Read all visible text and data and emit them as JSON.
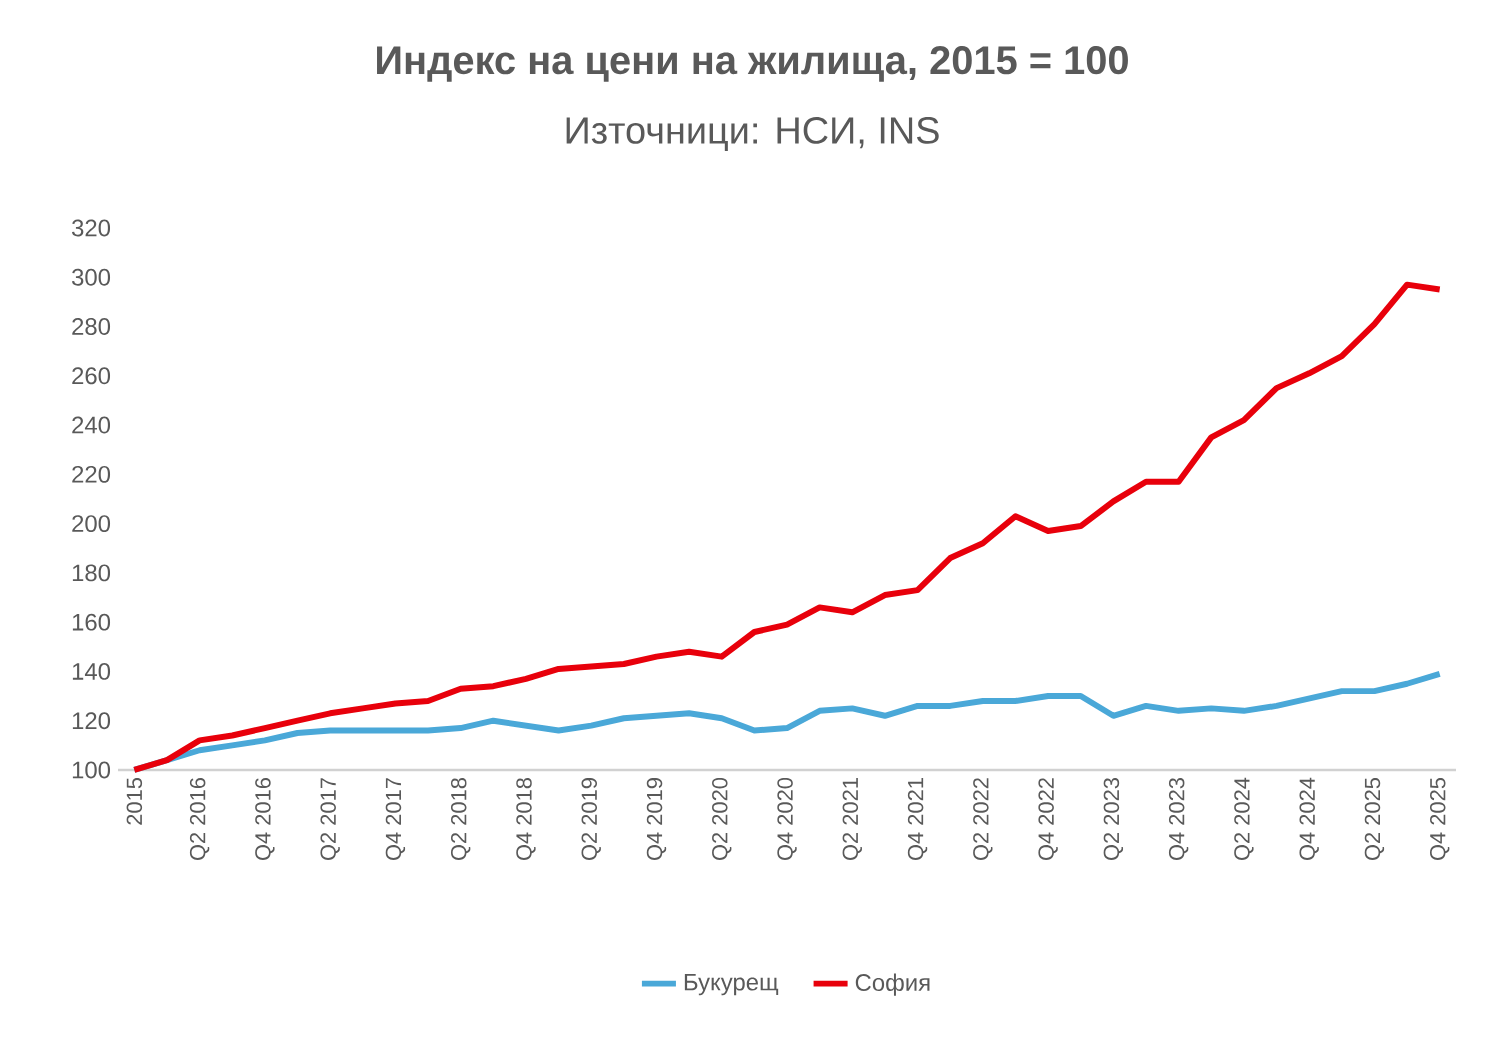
{
  "chart_data": {
    "type": "line",
    "title": "Индекс на цени на жилища, 2015 = 100",
    "subtitle": "Източници: НСИ, INS",
    "categories": [
      "2015",
      null,
      "Q2 2016",
      null,
      "Q4 2016",
      null,
      "Q2 2017",
      null,
      "Q4 2017",
      null,
      "Q2 2018",
      null,
      "Q4 2018",
      null,
      "Q2 2019",
      null,
      "Q4 2019",
      null,
      "Q2 2020",
      null,
      "Q4 2020",
      null,
      "Q2 2021",
      null,
      "Q4 2021",
      null,
      "Q2 2022",
      null,
      "Q4 2022",
      null,
      "Q2 2023",
      null,
      "Q4 2023",
      null,
      "Q2 2024",
      null,
      "Q4 2024",
      null,
      "Q2 2025",
      null,
      "Q4 2025"
    ],
    "series": [
      {
        "name": "Букурещ",
        "color": "#4aa8d8",
        "values": [
          100,
          104,
          108,
          110,
          112,
          115,
          116,
          116,
          116,
          116,
          117,
          120,
          118,
          116,
          118,
          121,
          122,
          123,
          121,
          116,
          117,
          124,
          125,
          122,
          126,
          126,
          128,
          128,
          130,
          130,
          122,
          126,
          124,
          125,
          124,
          126,
          129,
          132,
          132,
          135,
          139
        ]
      },
      {
        "name": "София",
        "color": "#e8000b",
        "values": [
          100,
          104,
          112,
          114,
          117,
          120,
          123,
          125,
          127,
          128,
          133,
          134,
          137,
          141,
          142,
          143,
          146,
          148,
          146,
          156,
          159,
          166,
          164,
          171,
          173,
          186,
          192,
          203,
          197,
          199,
          209,
          217,
          217,
          235,
          242,
          255,
          261,
          268,
          281,
          297,
          295
        ]
      }
    ],
    "ylim": [
      100,
      320
    ],
    "yticks": [
      100,
      120,
      140,
      160,
      180,
      200,
      220,
      240,
      260,
      280,
      300,
      320
    ],
    "legend": "bottom"
  }
}
